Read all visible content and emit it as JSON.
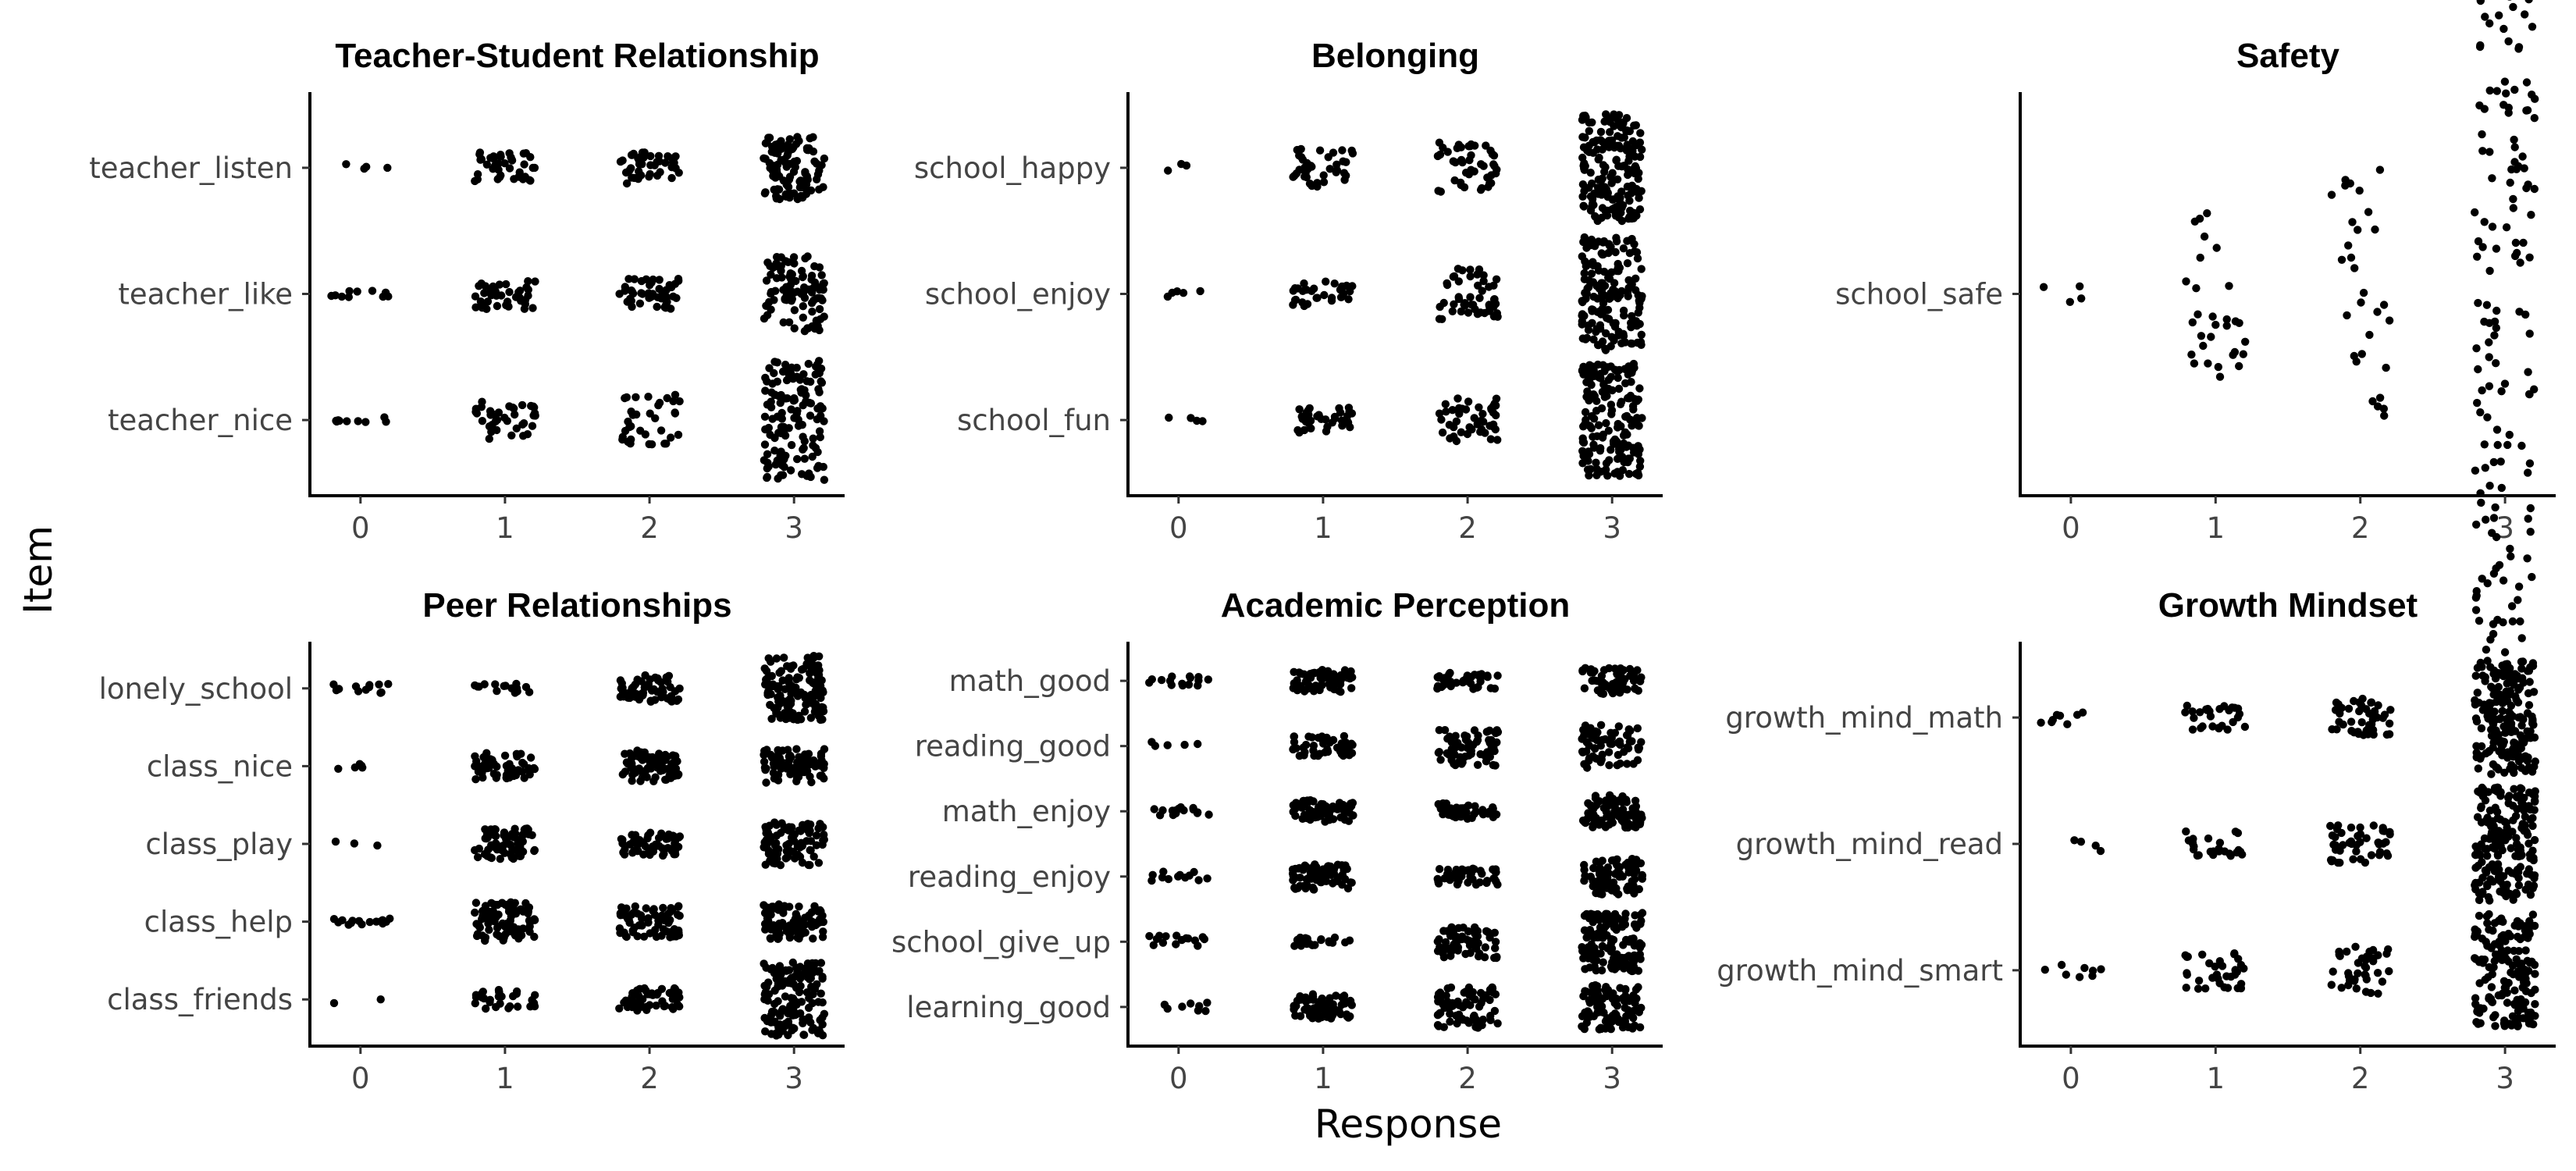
{
  "chart_data": {
    "type": "scatter",
    "style": "jittered strip plot, faceted",
    "xlabel": "Response",
    "ylabel": "Item",
    "x_ticks": [
      0,
      1,
      2,
      3
    ],
    "xlim": [
      -0.35,
      3.35
    ],
    "grid": false,
    "point_color": "#000000",
    "panels": [
      {
        "title": "Teacher-Student Relationship",
        "items": [
          {
            "label": "teacher_listen",
            "counts": [
              4,
              40,
              45,
              100
            ],
            "spread": [
              0.06,
              0.25,
              0.25,
              0.5
            ]
          },
          {
            "label": "teacher_like",
            "counts": [
              10,
              42,
              48,
              95
            ],
            "spread": [
              0.05,
              0.24,
              0.26,
              0.6
            ]
          },
          {
            "label": "teacher_nice",
            "counts": [
              9,
              38,
              35,
              140
            ],
            "spread": [
              0.05,
              0.3,
              0.4,
              0.95
            ]
          }
        ]
      },
      {
        "title": "Belonging",
        "items": [
          {
            "label": "school_happy",
            "counts": [
              3,
              40,
              45,
              170
            ],
            "spread": [
              0.06,
              0.3,
              0.4,
              0.85
            ]
          },
          {
            "label": "school_enjoy",
            "counts": [
              5,
              30,
              50,
              160
            ],
            "spread": [
              0.05,
              0.2,
              0.4,
              0.9
            ]
          },
          {
            "label": "school_fun",
            "counts": [
              4,
              35,
              45,
              170
            ],
            "spread": [
              0.05,
              0.2,
              0.35,
              0.9
            ]
          }
        ]
      },
      {
        "title": "Safety",
        "items": [
          {
            "label": "school_safe",
            "counts": [
              4,
              30,
              30,
              160
            ],
            "spread": [
              0.05,
              0.5,
              0.75,
              2.4
            ]
          }
        ]
      },
      {
        "title": "Peer Relationships",
        "items": [
          {
            "label": "lonely_school",
            "counts": [
              12,
              15,
              60,
              130
            ],
            "spread": [
              0.12,
              0.12,
              0.35,
              0.85
            ]
          },
          {
            "label": "class_nice",
            "counts": [
              5,
              55,
              70,
              90
            ],
            "spread": [
              0.1,
              0.35,
              0.4,
              0.45
            ]
          },
          {
            "label": "class_play",
            "counts": [
              3,
              70,
              55,
              90
            ],
            "spread": [
              0.12,
              0.4,
              0.3,
              0.55
            ]
          },
          {
            "label": "class_help",
            "counts": [
              15,
              85,
              65,
              90
            ],
            "spread": [
              0.1,
              0.5,
              0.4,
              0.45
            ]
          },
          {
            "label": "class_friends",
            "counts": [
              2,
              30,
              50,
              140
            ],
            "spread": [
              0.1,
              0.25,
              0.3,
              0.95
            ]
          }
        ]
      },
      {
        "title": "Academic Perception",
        "items": [
          {
            "label": "math_good",
            "counts": [
              15,
              70,
              45,
              60
            ],
            "spread": [
              0.15,
              0.35,
              0.25,
              0.4
            ]
          },
          {
            "label": "reading_good",
            "counts": [
              5,
              45,
              65,
              70
            ],
            "spread": [
              0.15,
              0.35,
              0.6,
              0.7
            ]
          },
          {
            "label": "math_enjoy",
            "counts": [
              15,
              70,
              45,
              80
            ],
            "spread": [
              0.15,
              0.35,
              0.25,
              0.5
            ]
          },
          {
            "label": "reading_enjoy",
            "counts": [
              12,
              70,
              45,
              80
            ],
            "spread": [
              0.15,
              0.4,
              0.25,
              0.55
            ]
          },
          {
            "label": "school_give_up",
            "counts": [
              15,
              25,
              60,
              140
            ],
            "spread": [
              0.2,
              0.15,
              0.5,
              0.9
            ]
          },
          {
            "label": "learning_good",
            "counts": [
              8,
              65,
              75,
              100
            ],
            "spread": [
              0.15,
              0.4,
              0.65,
              0.7
            ]
          }
        ]
      },
      {
        "title": "Growth Mindset",
        "items": [
          {
            "label": "growth_mind_math",
            "counts": [
              8,
              28,
              45,
              190
            ],
            "spread": [
              0.12,
              0.2,
              0.3,
              0.9
            ]
          },
          {
            "label": "growth_mind_read",
            "counts": [
              4,
              25,
              45,
              190
            ],
            "spread": [
              0.12,
              0.2,
              0.3,
              0.9
            ]
          },
          {
            "label": "growth_mind_smart",
            "counts": [
              8,
              35,
              38,
              160
            ],
            "spread": [
              0.12,
              0.3,
              0.4,
              0.9
            ]
          }
        ]
      }
    ]
  }
}
